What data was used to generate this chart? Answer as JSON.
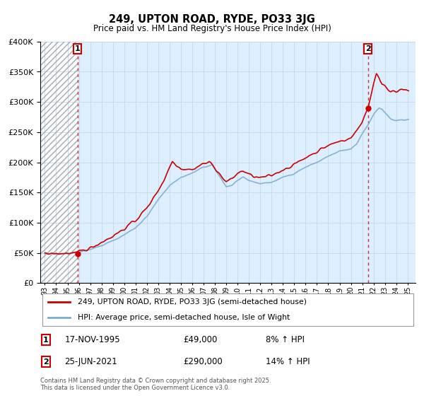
{
  "title": "249, UPTON ROAD, RYDE, PO33 3JG",
  "subtitle": "Price paid vs. HM Land Registry's House Price Index (HPI)",
  "legend_line1": "249, UPTON ROAD, RYDE, PO33 3JG (semi-detached house)",
  "legend_line2": "HPI: Average price, semi-detached house, Isle of Wight",
  "transaction1_date": "17-NOV-1995",
  "transaction1_price": "£49,000",
  "transaction1_hpi": "8% ↑ HPI",
  "transaction1_year": 1995.88,
  "transaction1_value": 49000,
  "transaction2_date": "25-JUN-2021",
  "transaction2_price": "£290,000",
  "transaction2_hpi": "14% ↑ HPI",
  "transaction2_year": 2021.5,
  "transaction2_value": 290000,
  "price_color": "#cc0000",
  "hpi_color": "#7aadcf",
  "grid_color": "#c8d8e8",
  "chart_bg": "#ddeeff",
  "annotation_box_color": "#cc0000",
  "ylim": [
    0,
    400000
  ],
  "yticks": [
    0,
    50000,
    100000,
    150000,
    200000,
    250000,
    300000,
    350000,
    400000
  ],
  "xlabel_years": [
    "93",
    "94",
    "95",
    "96",
    "97",
    "98",
    "99",
    "00",
    "01",
    "02",
    "03",
    "04",
    "05",
    "06",
    "07",
    "08",
    "09",
    "10",
    "11",
    "12",
    "13",
    "14",
    "15",
    "16",
    "17",
    "18",
    "19",
    "20",
    "21",
    "22",
    "23",
    "24",
    "25"
  ],
  "xlabel_year_vals": [
    1993,
    1994,
    1995,
    1996,
    1997,
    1998,
    1999,
    2000,
    2001,
    2002,
    2003,
    2004,
    2005,
    2006,
    2007,
    2008,
    2009,
    2010,
    2011,
    2012,
    2013,
    2014,
    2015,
    2016,
    2017,
    2018,
    2019,
    2020,
    2021,
    2022,
    2023,
    2024,
    2025
  ],
  "footnote": "Contains HM Land Registry data © Crown copyright and database right 2025.\nThis data is licensed under the Open Government Licence v3.0."
}
